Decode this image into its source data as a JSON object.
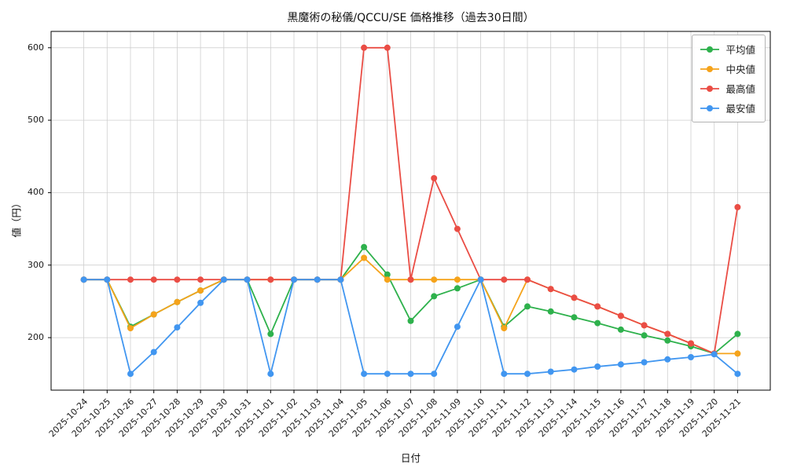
{
  "chart_data": {
    "type": "line",
    "title": "黒魔術の秘儀/QCCU/SE 価格推移（過去30日間）",
    "xlabel": "日付",
    "ylabel": "値（円）",
    "grid": true,
    "legend_position": "upper right",
    "ylim": [
      127.5,
      622.5
    ],
    "yticks": [
      200,
      300,
      400,
      500,
      600
    ],
    "x": [
      "2025-10-24",
      "2025-10-25",
      "2025-10-26",
      "2025-10-27",
      "2025-10-28",
      "2025-10-29",
      "2025-10-30",
      "2025-10-31",
      "2025-11-01",
      "2025-11-02",
      "2025-11-03",
      "2025-11-04",
      "2025-11-05",
      "2025-11-06",
      "2025-11-07",
      "2025-11-08",
      "2025-11-09",
      "2025-11-10",
      "2025-11-11",
      "2025-11-12",
      "2025-11-13",
      "2025-11-14",
      "2025-11-15",
      "2025-11-16",
      "2025-11-17",
      "2025-11-18",
      "2025-11-19",
      "2025-11-20",
      "2025-11-21"
    ],
    "series": [
      {
        "id": "average",
        "name": "平均値",
        "color": "#2eb14c",
        "values": [
          280,
          280,
          215,
          232,
          249,
          265,
          280,
          280,
          205,
          280,
          280,
          280,
          325,
          287,
          223,
          257,
          268,
          280,
          215,
          243,
          236,
          228,
          220,
          211,
          203,
          196,
          188,
          178,
          205
        ]
      },
      {
        "id": "median",
        "name": "中央値",
        "color": "#f5a31b",
        "values": [
          280,
          280,
          213,
          232,
          249,
          265,
          280,
          280,
          280,
          280,
          280,
          280,
          310,
          280,
          280,
          280,
          280,
          280,
          213,
          280,
          267,
          255,
          243,
          230,
          217,
          205,
          192,
          178,
          178
        ]
      },
      {
        "id": "highest",
        "name": "最高値",
        "color": "#ea4d45",
        "values": [
          280,
          280,
          280,
          280,
          280,
          280,
          280,
          280,
          280,
          280,
          280,
          280,
          600,
          600,
          280,
          420,
          350,
          280,
          280,
          280,
          267,
          255,
          243,
          230,
          217,
          205,
          192,
          178,
          380
        ]
      },
      {
        "id": "lowest",
        "name": "最安値",
        "color": "#4196f0",
        "values": [
          280,
          280,
          150,
          180,
          214,
          248,
          280,
          280,
          150,
          280,
          280,
          280,
          150,
          150,
          150,
          150,
          215,
          280,
          150,
          150,
          153,
          156,
          160,
          163,
          166,
          170,
          173,
          177,
          150
        ]
      }
    ]
  }
}
